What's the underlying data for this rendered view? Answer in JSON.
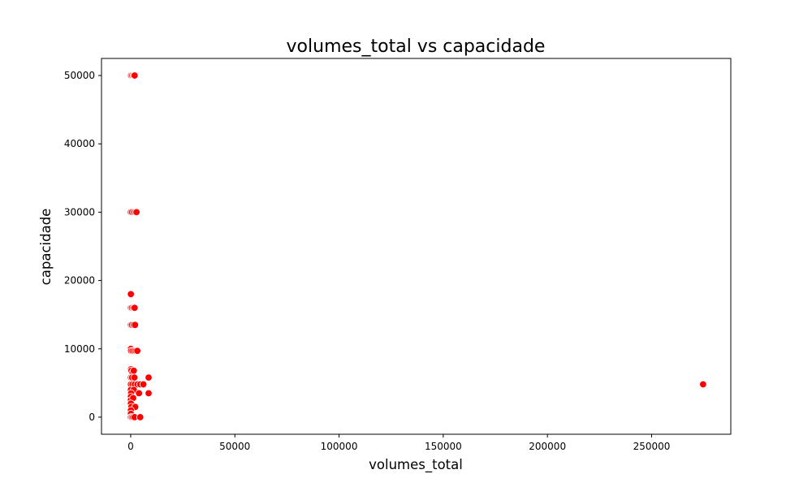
{
  "chart_data": {
    "type": "scatter",
    "title": "volumes_total vs capacidade",
    "xlabel": "volumes_total",
    "ylabel": "capacidade",
    "xlim": [
      -14000,
      288000
    ],
    "ylim": [
      -2500,
      52500
    ],
    "xticks": [
      0,
      50000,
      100000,
      150000,
      200000,
      250000
    ],
    "yticks": [
      0,
      10000,
      20000,
      30000,
      40000,
      50000
    ],
    "xtick_labels": [
      "0",
      "50000",
      "100000",
      "150000",
      "200000",
      "250000"
    ],
    "ytick_labels": [
      "0",
      "10000",
      "20000",
      "30000",
      "40000",
      "50000"
    ],
    "grid": false,
    "marker_color": "#ff0000",
    "marker_edge_color": "#ffffff",
    "points": [
      {
        "x": 200,
        "y": 50000
      },
      {
        "x": 800,
        "y": 50000
      },
      {
        "x": 1400,
        "y": 50000
      },
      {
        "x": 1900,
        "y": 50000
      },
      {
        "x": 100,
        "y": 30000
      },
      {
        "x": 700,
        "y": 30000
      },
      {
        "x": 1500,
        "y": 30000
      },
      {
        "x": 2200,
        "y": 30000
      },
      {
        "x": 2800,
        "y": 30000
      },
      {
        "x": 100,
        "y": 18000
      },
      {
        "x": 100,
        "y": 16000
      },
      {
        "x": 600,
        "y": 16000
      },
      {
        "x": 1300,
        "y": 16000
      },
      {
        "x": 1900,
        "y": 16000
      },
      {
        "x": 100,
        "y": 13500
      },
      {
        "x": 600,
        "y": 13500
      },
      {
        "x": 1400,
        "y": 13500
      },
      {
        "x": 2100,
        "y": 13500
      },
      {
        "x": 100,
        "y": 10000
      },
      {
        "x": 200,
        "y": 9700
      },
      {
        "x": 900,
        "y": 9700
      },
      {
        "x": 1700,
        "y": 9700
      },
      {
        "x": 2500,
        "y": 9700
      },
      {
        "x": 3200,
        "y": 9700
      },
      {
        "x": 100,
        "y": 7000
      },
      {
        "x": 300,
        "y": 6800
      },
      {
        "x": 900,
        "y": 6500
      },
      {
        "x": 1500,
        "y": 6800
      },
      {
        "x": 100,
        "y": 5800
      },
      {
        "x": 700,
        "y": 5800
      },
      {
        "x": 1800,
        "y": 5800
      },
      {
        "x": 8600,
        "y": 5800
      },
      {
        "x": 100,
        "y": 4800
      },
      {
        "x": 900,
        "y": 4800
      },
      {
        "x": 2000,
        "y": 4800
      },
      {
        "x": 3300,
        "y": 4800
      },
      {
        "x": 4600,
        "y": 4800
      },
      {
        "x": 6100,
        "y": 4800
      },
      {
        "x": 100,
        "y": 4000
      },
      {
        "x": 1500,
        "y": 4000
      },
      {
        "x": 200,
        "y": 3500
      },
      {
        "x": 4000,
        "y": 3500
      },
      {
        "x": 8600,
        "y": 3500
      },
      {
        "x": 100,
        "y": 3000
      },
      {
        "x": 100,
        "y": 2500
      },
      {
        "x": 1200,
        "y": 2800
      },
      {
        "x": 100,
        "y": 2000
      },
      {
        "x": 300,
        "y": 1500
      },
      {
        "x": 2200,
        "y": 1500
      },
      {
        "x": 100,
        "y": 1000
      },
      {
        "x": 100,
        "y": 500
      },
      {
        "x": 100,
        "y": 0
      },
      {
        "x": 600,
        "y": 0
      },
      {
        "x": 1200,
        "y": 0
      },
      {
        "x": 1900,
        "y": 0
      },
      {
        "x": 4600,
        "y": 0
      },
      {
        "x": 274700,
        "y": 4800
      }
    ]
  }
}
